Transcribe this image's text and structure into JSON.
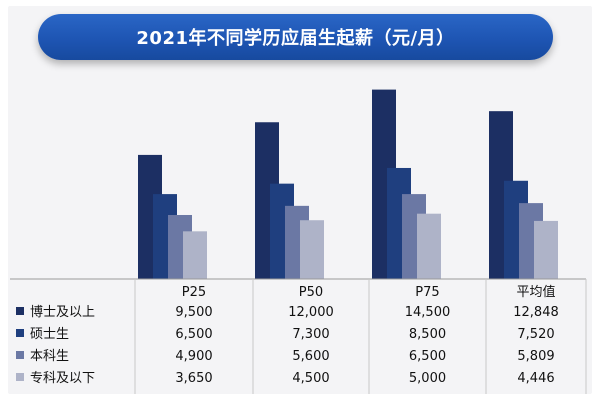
{
  "title": "2021年不同学历应届生起薪（元/月）",
  "chart_data": {
    "type": "bar",
    "title": "2021年不同学历应届生起薪（元/月）",
    "categories": [
      "P25",
      "P50",
      "P75",
      "平均值"
    ],
    "series": [
      {
        "name": "博士及以上",
        "color": "#1c2f63",
        "values": [
          9500,
          12000,
          14500,
          12848
        ]
      },
      {
        "name": "硕士生",
        "color": "#1f3f7f",
        "values": [
          6500,
          7300,
          8500,
          7520
        ]
      },
      {
        "name": "本科生",
        "color": "#6b78a4",
        "values": [
          4900,
          5600,
          6500,
          5809
        ]
      },
      {
        "name": "专科及以下",
        "color": "#aeb3c8",
        "values": [
          3650,
          4500,
          5000,
          4446
        ]
      }
    ],
    "table_values": [
      [
        "9,500",
        "12,000",
        "14,500",
        "12,848"
      ],
      [
        "6,500",
        "7,300",
        "8,500",
        "7,520"
      ],
      [
        "4,900",
        "5,600",
        "6,500",
        "5,809"
      ],
      [
        "3,650",
        "4,500",
        "5,000",
        "4,446"
      ]
    ],
    "xlabel": "",
    "ylabel": "",
    "ylim": [
      0,
      16000
    ],
    "grid": false,
    "legend": "table-left"
  }
}
